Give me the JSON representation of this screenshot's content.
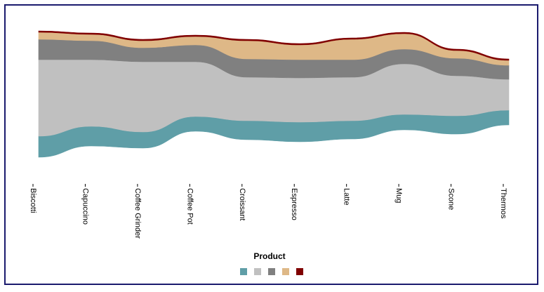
{
  "chart_data": {
    "type": "area",
    "subtype": "streamgraph",
    "categories": [
      "Biscotti",
      "Capuccino",
      "Coffee Grinder",
      "Coffee Pot",
      "Croissant",
      "Espresso",
      "Latte",
      "Mug",
      "Scone",
      "Thermos"
    ],
    "series": [
      {
        "color": "#5f9ea7",
        "baseline": [
          224,
          208,
          211,
          187,
          199,
          202,
          198,
          185,
          191,
          178
        ],
        "thickness": [
          30,
          28,
          23,
          21,
          27,
          28,
          26,
          22,
          26,
          21
        ]
      },
      {
        "color": "#c0c0c0",
        "thickness": [
          109,
          95,
          100,
          78,
          62,
          63,
          62,
          72,
          57,
          44
        ]
      },
      {
        "color": "#808080",
        "thickness": [
          29,
          27,
          20,
          24,
          26,
          26,
          25,
          21,
          25,
          20
        ]
      },
      {
        "color": "#deb887",
        "thickness": [
          10,
          9,
          10,
          12,
          26,
          21,
          29,
          22,
          11,
          7
        ]
      },
      {
        "color": "#800000",
        "thickness": [
          2,
          2,
          2,
          2,
          2,
          2,
          2,
          2,
          2,
          2
        ]
      }
    ],
    "axis_units": "pixel stack offsets (relative sizes only, no value axis shown)",
    "legend": {
      "title": "Product",
      "position": "bottom-center",
      "show_labels": false
    },
    "grid": false
  }
}
